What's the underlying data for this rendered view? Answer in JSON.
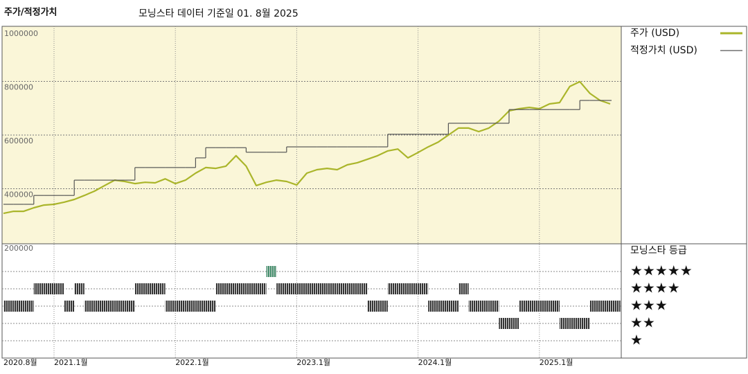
{
  "chart_data": {
    "type": "line",
    "title": "주가/적정가치",
    "subtitle": "모닝스타 데이터 기준일 01. 8월 2025",
    "x": [
      "2020-08",
      "2020-09",
      "2020-10",
      "2020-11",
      "2020-12",
      "2021-01",
      "2021-02",
      "2021-03",
      "2021-04",
      "2021-05",
      "2021-06",
      "2021-07",
      "2021-08",
      "2021-09",
      "2021-10",
      "2021-11",
      "2021-12",
      "2022-01",
      "2022-02",
      "2022-03",
      "2022-04",
      "2022-05",
      "2022-06",
      "2022-07",
      "2022-08",
      "2022-09",
      "2022-10",
      "2022-11",
      "2022-12",
      "2023-01",
      "2023-02",
      "2023-03",
      "2023-04",
      "2023-05",
      "2023-06",
      "2023-07",
      "2023-08",
      "2023-09",
      "2023-10",
      "2023-11",
      "2023-12",
      "2024-01",
      "2024-02",
      "2024-03",
      "2024-04",
      "2024-05",
      "2024-06",
      "2024-07",
      "2024-08",
      "2024-09",
      "2024-10",
      "2024-11",
      "2024-12",
      "2025-01",
      "2025-02",
      "2025-03",
      "2025-04",
      "2025-05",
      "2025-06",
      "2025-07",
      "2025-08"
    ],
    "series": [
      {
        "name": "주가 (USD)",
        "color": "#aab52a",
        "values": [
          308000,
          316000,
          316000,
          329000,
          339000,
          342000,
          350000,
          360000,
          375000,
          391000,
          412000,
          432000,
          427000,
          419000,
          424000,
          422000,
          437000,
          419000,
          432000,
          458000,
          479000,
          476000,
          484000,
          523000,
          484000,
          412000,
          424000,
          432000,
          427000,
          414000,
          458000,
          471000,
          476000,
          471000,
          489000,
          497000,
          510000,
          523000,
          541000,
          548000,
          515000,
          535000,
          556000,
          574000,
          600000,
          626000,
          626000,
          613000,
          626000,
          652000,
          690000,
          698000,
          703000,
          698000,
          716000,
          721000,
          781000,
          799000,
          755000,
          729000,
          716000
        ]
      },
      {
        "name": "적정가치 (USD)",
        "color": "#555555",
        "step": true,
        "values": [
          342000,
          342000,
          342000,
          375000,
          375000,
          375000,
          375000,
          432000,
          432000,
          432000,
          432000,
          432000,
          432000,
          479000,
          479000,
          479000,
          479000,
          479000,
          479000,
          515000,
          553000,
          553000,
          553000,
          553000,
          536000,
          536000,
          536000,
          536000,
          556000,
          556000,
          556000,
          556000,
          556000,
          556000,
          556000,
          556000,
          556000,
          556000,
          603000,
          603000,
          603000,
          603000,
          603000,
          603000,
          644000,
          644000,
          644000,
          644000,
          644000,
          644000,
          695000,
          695000,
          695000,
          695000,
          695000,
          695000,
          695000,
          729000,
          729000,
          729000,
          729000
        ]
      }
    ],
    "ylim": [
      200000,
      1000000
    ],
    "yticks": [
      200000,
      400000,
      600000,
      800000,
      1000000
    ],
    "xticks": [
      {
        "value": "2020-08",
        "label": "2020.8월"
      },
      {
        "value": "2021-01",
        "label": "2021.1월"
      },
      {
        "value": "2022-01",
        "label": "2022.1월"
      },
      {
        "value": "2023-01",
        "label": "2023.1월"
      },
      {
        "value": "2024-01",
        "label": "2024.1월"
      },
      {
        "value": "2025-01",
        "label": "2025.1월"
      }
    ],
    "grid": true,
    "legend": "right",
    "ratings": {
      "title": "모닝스타 등급",
      "levels": [
        "★",
        "★★",
        "★★★",
        "★★★★",
        "★★★★★"
      ],
      "colors": [
        "#333333",
        "#333333",
        "#333333",
        "#333333",
        "#3b8a66"
      ],
      "values": [
        3,
        3,
        3,
        4,
        4,
        4,
        3,
        4,
        3,
        3,
        3,
        3,
        3,
        4,
        4,
        4,
        3,
        3,
        3,
        3,
        3,
        4,
        4,
        4,
        4,
        4,
        5,
        4,
        4,
        4,
        4,
        4,
        4,
        4,
        4,
        4,
        3,
        3,
        4,
        4,
        4,
        4,
        3,
        3,
        3,
        4,
        3,
        3,
        3,
        2,
        2,
        3,
        3,
        3,
        3,
        2,
        2,
        2,
        3,
        3,
        3
      ]
    }
  }
}
